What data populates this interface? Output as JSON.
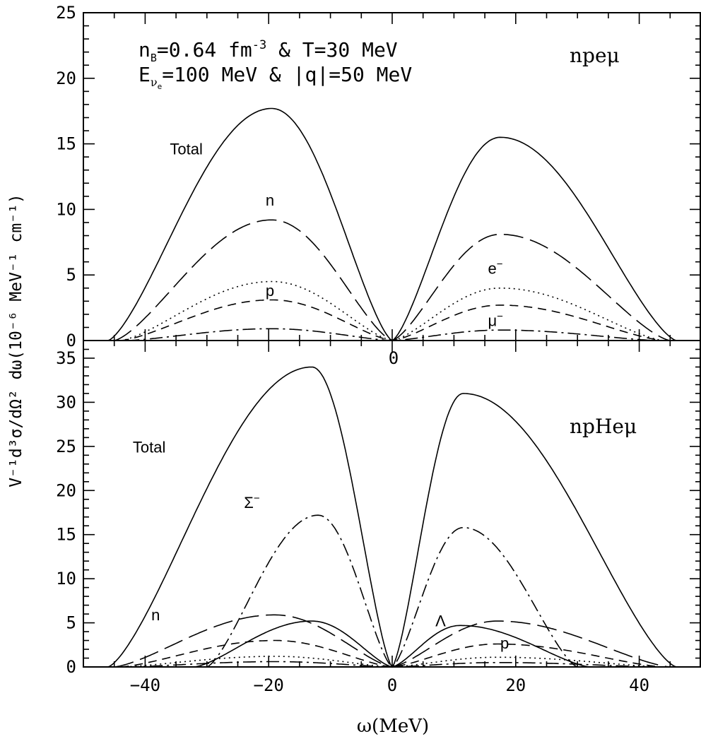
{
  "chart_data": [
    {
      "type": "line",
      "panel": "top",
      "label": "npeμ",
      "title": "",
      "annotation_line1": "n_B=0.64 fm^-3 & T=30 MeV",
      "annotation_line1_main": "n",
      "annotation_line1_sub": "B",
      "annotation_line1_rest": "=0.64 fm",
      "annotation_line1_sup": "-3",
      "annotation_line1_tail": " & T=30 MeV",
      "annotation_line2": "E_νe=100 MeV & |q|=50 MeV",
      "annotation_line2_main": "E",
      "annotation_line2_sub": "ν",
      "annotation_line2_subsub": "e",
      "annotation_line2_rest": "=100 MeV & |q|=50 MeV",
      "xlim": [
        -50,
        50
      ],
      "ylim": [
        0,
        25
      ],
      "yticks": [
        0,
        5,
        10,
        15,
        20,
        25
      ],
      "series": [
        {
          "name": "Total",
          "style": "solid",
          "peaks": [
            {
              "center": -19.5,
              "value": 17.7,
              "edge": -46
            },
            {
              "center": 17.5,
              "value": 15.5,
              "edge": 46
            }
          ]
        },
        {
          "name": "n",
          "style": "longdash",
          "peaks": [
            {
              "center": -19.5,
              "value": 9.2,
              "edge": -45
            },
            {
              "center": 17.5,
              "value": 8.1,
              "edge": 45
            }
          ]
        },
        {
          "name": "e⁻",
          "style": "dotted",
          "peaks": [
            {
              "center": -19.5,
              "value": 4.5,
              "edge": -44
            },
            {
              "center": 17.5,
              "value": 4.0,
              "edge": 44
            }
          ]
        },
        {
          "name": "p",
          "style": "dashed",
          "peaks": [
            {
              "center": -19.5,
              "value": 3.1,
              "edge": -44
            },
            {
              "center": 17.5,
              "value": 2.7,
              "edge": 44
            }
          ]
        },
        {
          "name": "μ⁻",
          "style": "dashdot",
          "peaks": [
            {
              "center": -19.5,
              "value": 0.9,
              "edge": -43
            },
            {
              "center": 17.5,
              "value": 0.8,
              "edge": 43
            }
          ]
        }
      ],
      "curve_labels": [
        {
          "text": "Total",
          "x": -36,
          "y": 14.2
        },
        {
          "text": "n",
          "x": -20.5,
          "y": 10.3
        },
        {
          "text": "p",
          "x": -20.5,
          "y": 3.4
        },
        {
          "text": "e",
          "sup": "−",
          "x": 15.5,
          "y": 5.1
        },
        {
          "text": "μ",
          "sup": "−",
          "x": 15.5,
          "y": 1.1
        }
      ]
    },
    {
      "type": "line",
      "panel": "bottom",
      "label": "npHeμ",
      "title": "",
      "xlim": [
        -50,
        50
      ],
      "ylim": [
        0,
        37
      ],
      "yticks": [
        0,
        5,
        10,
        15,
        20,
        25,
        30,
        35
      ],
      "xticks": [
        -40,
        -20,
        0,
        20,
        40
      ],
      "xlabel": "ω(MeV)",
      "series": [
        {
          "name": "Total",
          "style": "solid",
          "peaks": [
            {
              "center": -13,
              "value": 34.0,
              "edge": -46
            },
            {
              "center": 11.5,
              "value": 31.0,
              "edge": 46
            }
          ]
        },
        {
          "name": "Σ⁻",
          "style": "dashdot",
          "peaks": [
            {
              "center": -12,
              "value": 17.2,
              "edge": -30
            },
            {
              "center": 11.5,
              "value": 15.8,
              "edge": 30
            }
          ]
        },
        {
          "name": "n",
          "style": "longdash",
          "peaks": [
            {
              "center": -19,
              "value": 5.9,
              "edge": -45
            },
            {
              "center": 17,
              "value": 5.2,
              "edge": 45
            }
          ]
        },
        {
          "name": "Λ",
          "style": "solid",
          "peaks": [
            {
              "center": -13,
              "value": 5.2,
              "edge": -32
            },
            {
              "center": 11,
              "value": 4.7,
              "edge": 32
            }
          ]
        },
        {
          "name": "p",
          "style": "dashed",
          "peaks": [
            {
              "center": -19,
              "value": 3.0,
              "edge": -44
            },
            {
              "center": 17,
              "value": 2.6,
              "edge": 44
            }
          ]
        },
        {
          "name": "e⁻",
          "style": "dotted",
          "peaks": [
            {
              "center": -19,
              "value": 1.2,
              "edge": -44
            },
            {
              "center": 17,
              "value": 1.1,
              "edge": 44
            }
          ]
        },
        {
          "name": "μ⁻",
          "style": "dashdot",
          "peaks": [
            {
              "center": -19,
              "value": 0.6,
              "edge": -43
            },
            {
              "center": 17,
              "value": 0.5,
              "edge": 43
            }
          ]
        }
      ],
      "curve_labels": [
        {
          "text": "Total",
          "x": -42,
          "y": 24.3
        },
        {
          "text": "Σ",
          "sup": "−",
          "x": -24,
          "y": 18.0
        },
        {
          "text": "n",
          "x": -39,
          "y": 5.3
        },
        {
          "text": "Λ",
          "x": 7,
          "y": 4.6
        },
        {
          "text": "p",
          "x": 17.5,
          "y": 2.1
        }
      ]
    }
  ],
  "shared": {
    "ylabel": "V⁻¹d³σ/dΩ² dω(10⁻⁶ MeV⁻¹ cm⁻¹)",
    "center_zero": "0"
  }
}
